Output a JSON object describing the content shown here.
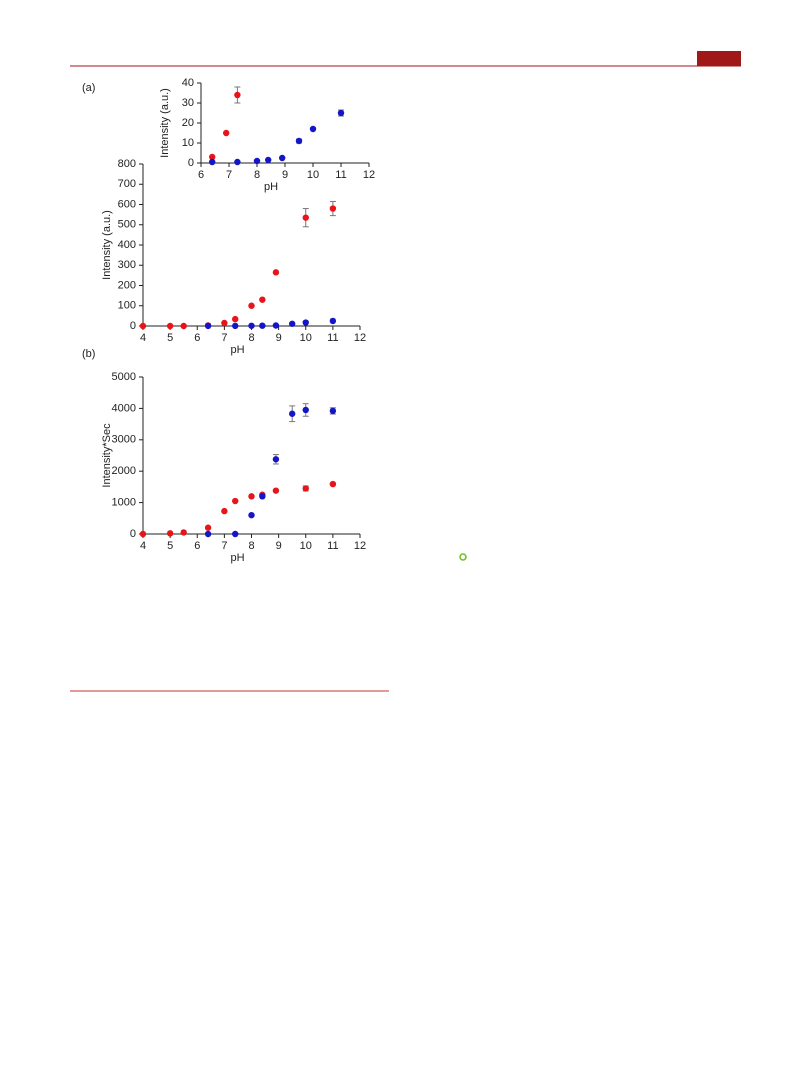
{
  "chart_data": [
    {
      "type": "scatter",
      "ylabel": "Intensity (a.u.)",
      "xlabel": "pH",
      "xlim": [
        6,
        12
      ],
      "xticks": [
        6,
        7,
        8,
        9,
        10,
        11,
        12
      ],
      "ylim": [
        0,
        40
      ],
      "yticks": [
        0,
        10,
        20,
        30,
        40
      ],
      "series": [
        {
          "color": "#e8141a",
          "x": [
            6.4,
            6.9,
            7.3
          ],
          "values": [
            3,
            15,
            34
          ],
          "errors": [
            null,
            null,
            4
          ]
        },
        {
          "color": "#1414c8",
          "x": [
            6.4,
            7.3,
            8,
            8.4,
            8.9,
            9.5,
            10,
            11
          ],
          "values": [
            0.5,
            0.5,
            1,
            1.5,
            2.5,
            11,
            17,
            25
          ],
          "errors": [
            null,
            null,
            null,
            null,
            null,
            1,
            null,
            1.5
          ]
        }
      ]
    },
    {
      "type": "scatter",
      "panel_label": "(a)",
      "ylabel": "Intensity (a.u.)",
      "xlabel": "pH",
      "xlim": [
        4,
        12
      ],
      "xticks": [
        4,
        5,
        6,
        7,
        8,
        9,
        10,
        11,
        12
      ],
      "ylim": [
        0,
        800
      ],
      "yticks": [
        0,
        100,
        200,
        300,
        400,
        500,
        600,
        700,
        800
      ],
      "series": [
        {
          "color": "#e8141a",
          "x": [
            4,
            5,
            5.5,
            6.4,
            7,
            7.4,
            8,
            8.4,
            8.9,
            10,
            11
          ],
          "values": [
            0,
            0,
            0,
            3,
            15,
            34,
            100,
            130,
            265,
            535,
            580
          ],
          "errors": [
            null,
            null,
            null,
            null,
            null,
            null,
            null,
            null,
            null,
            45,
            35
          ]
        },
        {
          "color": "#1414c8",
          "x": [
            6.4,
            7.4,
            8,
            8.4,
            8.9,
            9.5,
            10,
            11
          ],
          "values": [
            0.5,
            0.5,
            1,
            1.5,
            2.5,
            11,
            17,
            25
          ],
          "errors": [
            null,
            null,
            null,
            null,
            null,
            null,
            null,
            null
          ]
        }
      ]
    },
    {
      "type": "scatter",
      "panel_label": "(b)",
      "ylabel": "Intensity*Sec",
      "xlabel": "pH",
      "xlim": [
        4,
        12
      ],
      "xticks": [
        4,
        5,
        6,
        7,
        8,
        9,
        10,
        11,
        12
      ],
      "ylim": [
        0,
        5000
      ],
      "yticks": [
        0,
        1000,
        2000,
        3000,
        4000,
        5000
      ],
      "series": [
        {
          "color": "#e8141a",
          "x": [
            4,
            5,
            5.5,
            6.4,
            7,
            7.4,
            8,
            8.4,
            8.9,
            10,
            11
          ],
          "values": [
            0,
            20,
            50,
            200,
            730,
            1050,
            1200,
            1250,
            1380,
            1450,
            1590
          ],
          "errors": [
            null,
            null,
            null,
            null,
            null,
            null,
            null,
            null,
            null,
            80,
            null
          ]
        },
        {
          "color": "#1414c8",
          "x": [
            6.4,
            7.4,
            8,
            8.4,
            8.9,
            9.5,
            10,
            11
          ],
          "values": [
            0,
            0,
            600,
            1200,
            2380,
            3830,
            3950,
            3920
          ],
          "errors": [
            null,
            null,
            null,
            null,
            150,
            250,
            200,
            100
          ]
        }
      ]
    }
  ]
}
